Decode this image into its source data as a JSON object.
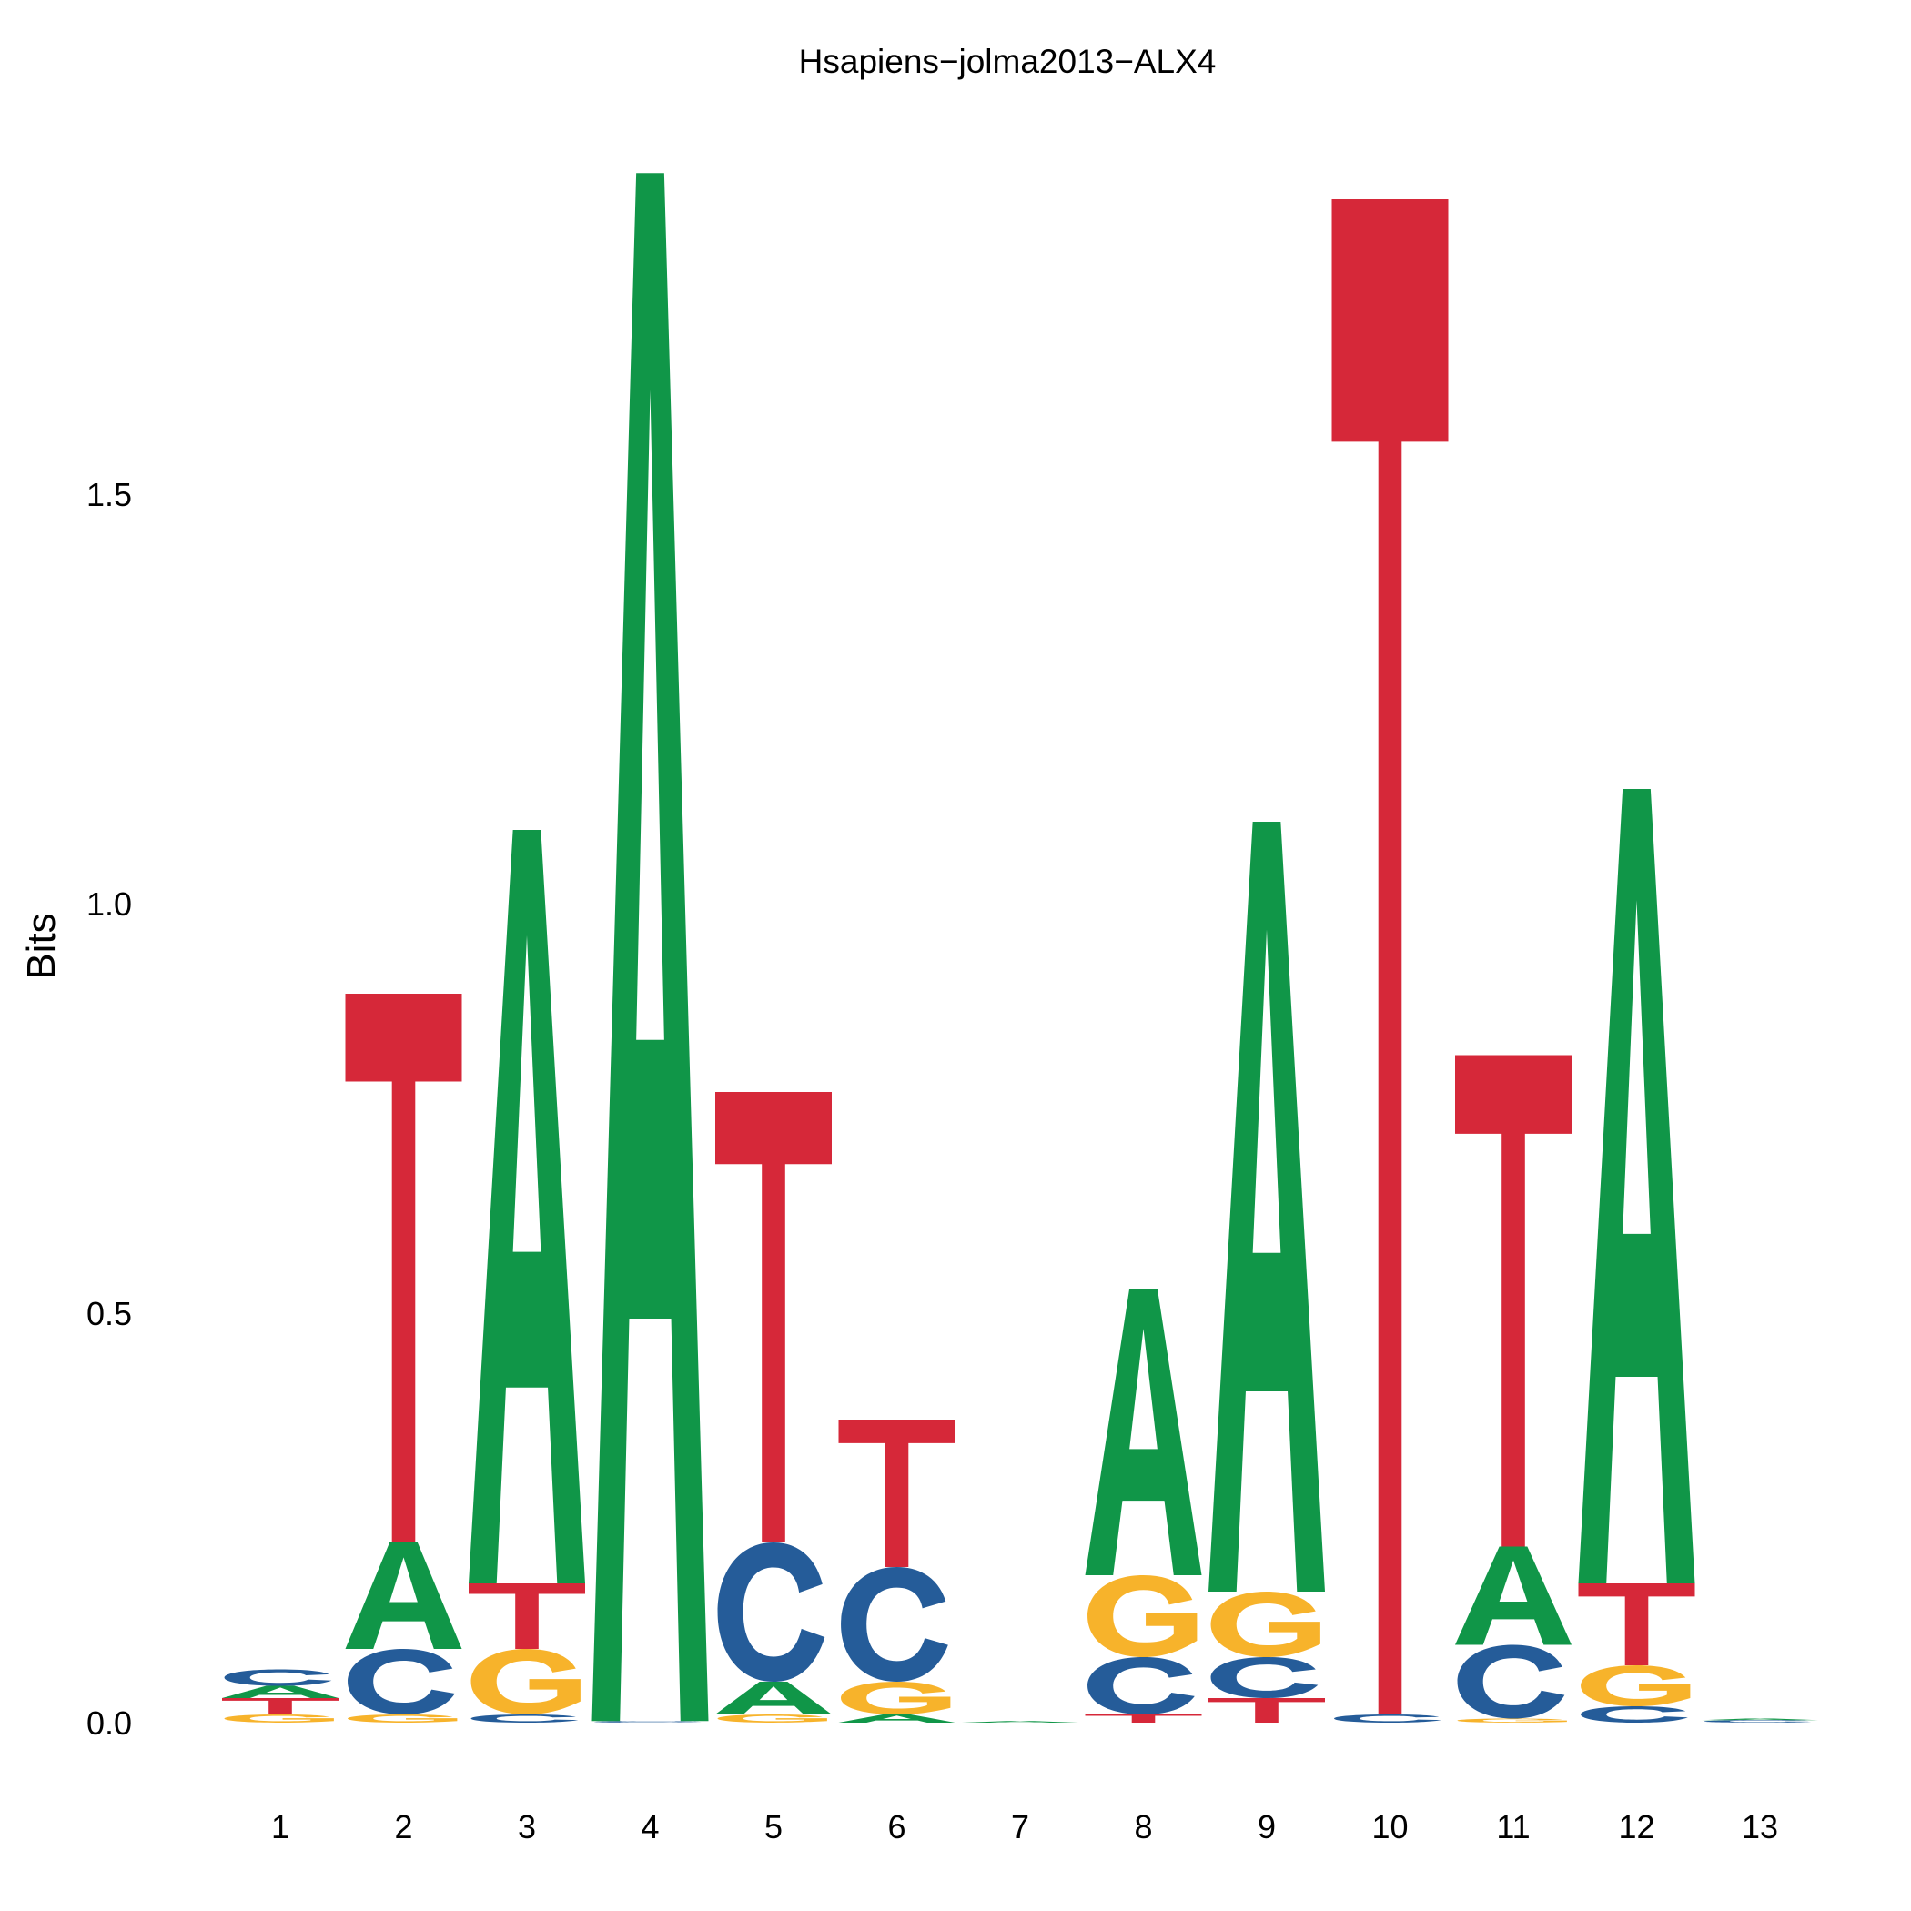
{
  "chart_data": {
    "type": "sequence-logo",
    "title": "Hsapiens−jolma2013−ALX4",
    "ylabel": "Bits",
    "xlabel": "",
    "ylim": [
      0,
      1.88
    ],
    "yticks": [
      "0.0",
      "0.5",
      "1.0",
      "1.5"
    ],
    "ytick_values": [
      0.0,
      0.5,
      1.0,
      1.5
    ],
    "positions": [
      "1",
      "2",
      "3",
      "4",
      "5",
      "6",
      "7",
      "8",
      "9",
      "10",
      "11",
      "12",
      "13"
    ],
    "colors": {
      "A": "#109648",
      "C": "#255C99",
      "G": "#F7B32B",
      "T": "#D62839"
    },
    "stacks": [
      [
        {
          "letter": "G",
          "bits": 0.01
        },
        {
          "letter": "T",
          "bits": 0.02
        },
        {
          "letter": "A",
          "bits": 0.015
        },
        {
          "letter": "C",
          "bits": 0.02
        }
      ],
      [
        {
          "letter": "G",
          "bits": 0.01
        },
        {
          "letter": "C",
          "bits": 0.08
        },
        {
          "letter": "A",
          "bits": 0.13
        },
        {
          "letter": "T",
          "bits": 0.67
        }
      ],
      [
        {
          "letter": "C",
          "bits": 0.01
        },
        {
          "letter": "G",
          "bits": 0.08
        },
        {
          "letter": "T",
          "bits": 0.08
        },
        {
          "letter": "A",
          "bits": 0.92
        }
      ],
      [
        {
          "letter": "C",
          "bits": 0.002
        },
        {
          "letter": "A",
          "bits": 1.89
        }
      ],
      [
        {
          "letter": "G",
          "bits": 0.01
        },
        {
          "letter": "A",
          "bits": 0.04
        },
        {
          "letter": "C",
          "bits": 0.17
        },
        {
          "letter": "T",
          "bits": 0.55
        }
      ],
      [
        {
          "letter": "A",
          "bits": 0.01
        },
        {
          "letter": "G",
          "bits": 0.04
        },
        {
          "letter": "C",
          "bits": 0.14
        },
        {
          "letter": "T",
          "bits": 0.18
        }
      ],
      [
        {
          "letter": "A",
          "bits": 0.002
        }
      ],
      [
        {
          "letter": "T",
          "bits": 0.01
        },
        {
          "letter": "C",
          "bits": 0.07
        },
        {
          "letter": "G",
          "bits": 0.1
        },
        {
          "letter": "A",
          "bits": 0.35
        }
      ],
      [
        {
          "letter": "T",
          "bits": 0.03
        },
        {
          "letter": "C",
          "bits": 0.05
        },
        {
          "letter": "G",
          "bits": 0.08
        },
        {
          "letter": "A",
          "bits": 0.94
        }
      ],
      [
        {
          "letter": "C",
          "bits": 0.01
        },
        {
          "letter": "T",
          "bits": 1.85
        }
      ],
      [
        {
          "letter": "G",
          "bits": 0.005
        },
        {
          "letter": "C",
          "bits": 0.09
        },
        {
          "letter": "A",
          "bits": 0.12
        },
        {
          "letter": "T",
          "bits": 0.6
        }
      ],
      [
        {
          "letter": "C",
          "bits": 0.02
        },
        {
          "letter": "G",
          "bits": 0.05
        },
        {
          "letter": "T",
          "bits": 0.1
        },
        {
          "letter": "A",
          "bits": 0.97
        }
      ],
      [
        {
          "letter": "C",
          "bits": 0.003
        },
        {
          "letter": "A",
          "bits": 0.002
        }
      ]
    ]
  }
}
